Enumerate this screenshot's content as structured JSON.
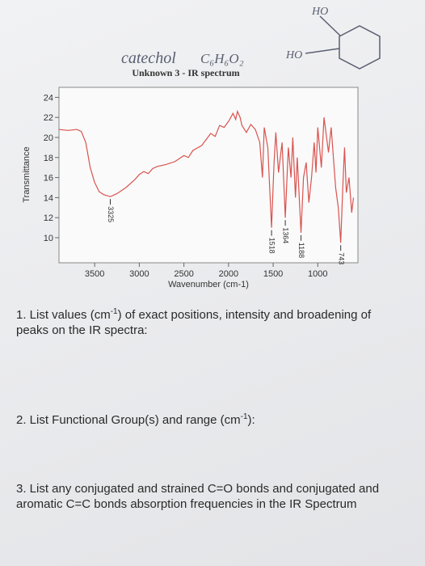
{
  "chart_data": {
    "type": "line",
    "title": "Unknown 3 - IR spectrum",
    "x_label": "Wavenumber (cm-1)",
    "y_label": "Transmittance",
    "x": [
      3900,
      3800,
      3700,
      3650,
      3600,
      3550,
      3500,
      3450,
      3400,
      3325,
      3250,
      3150,
      3050,
      3000,
      2950,
      2900,
      2850,
      2800,
      2700,
      2600,
      2500,
      2450,
      2400,
      2300,
      2250,
      2200,
      2150,
      2100,
      2050,
      2000,
      1950,
      1920,
      1900,
      1870,
      1850,
      1800,
      1750,
      1700,
      1650,
      1620,
      1600,
      1560,
      1518,
      1490,
      1470,
      1440,
      1400,
      1364,
      1330,
      1300,
      1280,
      1250,
      1230,
      1188,
      1160,
      1130,
      1100,
      1070,
      1040,
      1020,
      1000,
      960,
      930,
      880,
      850,
      800,
      770,
      743,
      720,
      700,
      680,
      650,
      620,
      600
    ],
    "values": [
      20.8,
      20.7,
      20.8,
      20.6,
      19.5,
      17,
      15.5,
      14.6,
      14.3,
      14.1,
      14.4,
      15.0,
      15.8,
      16.3,
      16.6,
      16.4,
      16.9,
      17.1,
      17.3,
      17.6,
      18.2,
      18.0,
      18.7,
      19.2,
      19.8,
      20.4,
      20.1,
      21.2,
      21.0,
      21.6,
      22.4,
      21.8,
      22.6,
      22.0,
      21.2,
      20.5,
      21.3,
      20.8,
      19.5,
      16.0,
      21.0,
      19.0,
      11.0,
      17.5,
      20.5,
      16.5,
      19.5,
      12.0,
      19.0,
      16.0,
      20.0,
      14.0,
      18.0,
      10.5,
      16.0,
      17.5,
      13.5,
      16.0,
      19.5,
      16.5,
      21.0,
      17.0,
      22.0,
      18.5,
      21.0,
      15.0,
      13.0,
      9.5,
      15.0,
      19.0,
      14.5,
      16.0,
      12.5,
      14.0
    ],
    "color": "#d9534f",
    "xlim": [
      3900,
      550
    ],
    "xticks": [
      3500,
      3000,
      2500,
      2000,
      1500,
      1000
    ],
    "ylim": [
      7.5,
      25
    ],
    "yticks": [
      10,
      12,
      14,
      16,
      18,
      20,
      22,
      24
    ],
    "peak_labels": [
      3325,
      1518,
      1364,
      1188,
      743
    ]
  },
  "handwriting": {
    "name": "catechol",
    "formula": "C₆H₆O₂",
    "ho_top": "HO",
    "ho_left": "HO"
  },
  "questions": [
    {
      "before": "1. List values (cm",
      "sup": "-1",
      "after": ") of exact positions, intensity and broadening of peaks on the IR spectra:"
    },
    {
      "before": "2. List Functional Group(s) and range (cm",
      "sup": "-1",
      "after": "):"
    },
    {
      "before": "3. List any conjugated and strained C=O bonds and conjugated and aromatic C=C bonds absorption frequencies in the IR Spectrum",
      "sup": null,
      "after": null
    }
  ]
}
